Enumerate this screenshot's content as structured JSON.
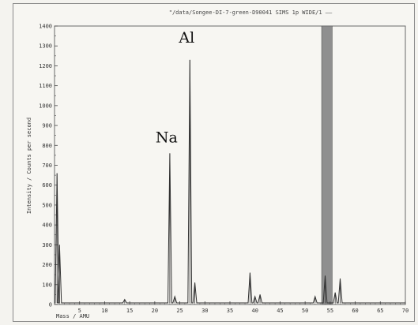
{
  "chart_data": {
    "type": "line",
    "title": "\"/data/Songee-DI-7-green-D90041 SIMS 1p WIDE/1 ——",
    "xlabel": "Mass / AMU",
    "ylabel": "Intensity / Counts per second",
    "xlim": [
      0,
      70
    ],
    "ylim": [
      0,
      1400
    ],
    "x_ticks": [
      "5",
      "10",
      "15",
      "20",
      "25",
      "30",
      "35",
      "40",
      "45",
      "50",
      "55",
      "60",
      "65",
      "70"
    ],
    "y_ticks": [
      "0",
      "100",
      "200",
      "300",
      "400",
      "500",
      "600",
      "700",
      "800",
      "900",
      "1000",
      "1100",
      "1200",
      "1300",
      "1400"
    ],
    "grid": false,
    "peaks": [
      {
        "mass": 0.5,
        "intensity": 660
      },
      {
        "mass": 1.0,
        "intensity": 300
      },
      {
        "mass": 14.0,
        "intensity": 25
      },
      {
        "mass": 23.0,
        "intensity": 760
      },
      {
        "mass": 24.0,
        "intensity": 40
      },
      {
        "mass": 27.0,
        "intensity": 1230
      },
      {
        "mass": 28.0,
        "intensity": 110
      },
      {
        "mass": 39.0,
        "intensity": 160
      },
      {
        "mass": 40.0,
        "intensity": 40
      },
      {
        "mass": 41.0,
        "intensity": 50
      },
      {
        "mass": 52.0,
        "intensity": 40
      },
      {
        "mass": 54.0,
        "intensity": 145
      },
      {
        "mass": 56.0,
        "intensity": 60
      },
      {
        "mass": 57.0,
        "intensity": 130
      }
    ],
    "highlight_band": {
      "x_start": 53.3,
      "x_end": 55.4,
      "color": "#8f8f8f"
    },
    "annotations": [
      {
        "text": "Na",
        "mass": 23.0,
        "intensity": 800
      },
      {
        "text": "Al",
        "mass": 27.0,
        "intensity": 1300
      }
    ],
    "line_color": "#333333"
  }
}
